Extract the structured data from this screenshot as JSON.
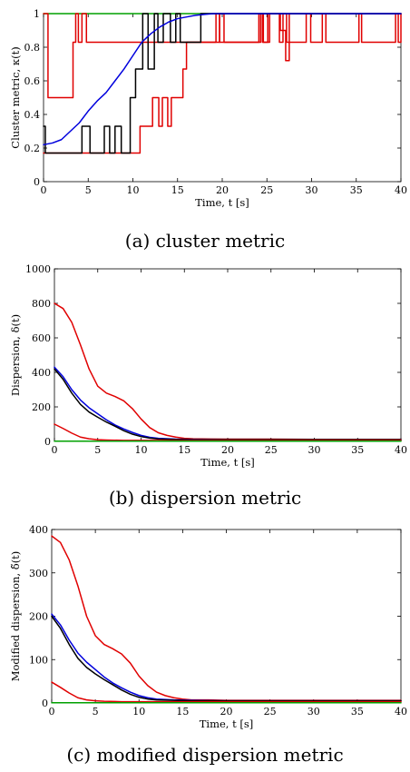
{
  "chart_data": [
    {
      "type": "line",
      "caption": "(a) cluster metric",
      "xlabel": "Time, t [s]",
      "ylabel": "Cluster metric, κ(t)",
      "xlim": [
        0,
        40
      ],
      "ylim": [
        0,
        1
      ],
      "xticks": [
        0,
        5,
        10,
        15,
        20,
        25,
        30,
        35,
        40
      ],
      "yticks": [
        0,
        0.2,
        0.4,
        0.6,
        0.8,
        1
      ],
      "ytick_labels": [
        "0",
        "0.2",
        "0.4",
        "0.6",
        "0.8",
        "1"
      ],
      "series": [
        {
          "color": "#00a000",
          "x": [
            0,
            40
          ],
          "y": [
            1,
            1
          ],
          "step": false
        },
        {
          "color": "#e00000",
          "x": [
            0,
            0.5,
            3.3,
            3.6,
            3.9,
            4.3,
            4.8,
            19.7,
            20.2,
            24.3,
            24.6,
            25.1,
            26.4,
            26.8,
            27.2,
            29.4,
            29.9,
            31.2,
            31.6,
            35.3,
            35.6,
            39.4,
            39.7,
            40
          ],
          "y": [
            1,
            0.5,
            0.83,
            1,
            0.83,
            1,
            0.83,
            1,
            0.83,
            1,
            0.83,
            1,
            0.83,
            1,
            0.83,
            1,
            0.83,
            1,
            0.83,
            1,
            0.83,
            1,
            0.83,
            1
          ],
          "step": true
        },
        {
          "color": "#e00000",
          "x": [
            0,
            0.3,
            10.8,
            12.2,
            12.9,
            13.3,
            13.9,
            14.3,
            14.7,
            15.6,
            16.0,
            17.4,
            19.3,
            19.7,
            24.1,
            24.5,
            25.3,
            26.5,
            27.1,
            27.5,
            40
          ],
          "y": [
            0.17,
            0.17,
            0.33,
            0.5,
            0.33,
            0.5,
            0.33,
            0.5,
            0.5,
            0.67,
            0.83,
            0.83,
            1,
            0.83,
            1,
            0.83,
            1,
            0.9,
            0.72,
            1,
            1
          ],
          "step": true
        },
        {
          "color": "#000000",
          "x": [
            0,
            0.2,
            4.3,
            5.2,
            6.8,
            7.4,
            8.0,
            8.7,
            9.7,
            10.3,
            11.1,
            11.7,
            12.4,
            12.8,
            13.4,
            14.2,
            14.8,
            15.3,
            15.8,
            17.6,
            40
          ],
          "y": [
            0.33,
            0.17,
            0.33,
            0.17,
            0.33,
            0.17,
            0.33,
            0.17,
            0.5,
            0.67,
            1,
            0.67,
            1,
            0.83,
            1,
            0.83,
            1,
            0.83,
            0.83,
            1,
            1
          ],
          "step": true
        },
        {
          "color": "#0000dd",
          "x": [
            0,
            1,
            2,
            3,
            4,
            5,
            6,
            7,
            8,
            9,
            10,
            11,
            12,
            13,
            14,
            15,
            16,
            17,
            18,
            19,
            20,
            22,
            25,
            30,
            35,
            40
          ],
          "y": [
            0.22,
            0.23,
            0.25,
            0.3,
            0.35,
            0.42,
            0.48,
            0.53,
            0.6,
            0.67,
            0.75,
            0.83,
            0.88,
            0.92,
            0.95,
            0.97,
            0.98,
            0.99,
            0.995,
            1,
            1,
            1,
            1,
            1,
            1,
            1
          ],
          "step": false
        }
      ]
    },
    {
      "type": "line",
      "caption": "(b) dispersion metric",
      "xlabel": "Time, t [s]",
      "ylabel": "Dispersion, δ(t)",
      "xlim": [
        0,
        40
      ],
      "ylim": [
        0,
        1000
      ],
      "xticks": [
        0,
        5,
        10,
        15,
        20,
        25,
        30,
        35,
        40
      ],
      "yticks": [
        0,
        200,
        400,
        600,
        800,
        1000
      ],
      "ytick_labels": [
        "0",
        "200",
        "400",
        "600",
        "800",
        "1000"
      ],
      "series": [
        {
          "color": "#e00000",
          "x": [
            0,
            1,
            2,
            3,
            4,
            5,
            6,
            7,
            8,
            9,
            10,
            11,
            12,
            13,
            14,
            15,
            16,
            18,
            20,
            25,
            30,
            40
          ],
          "y": [
            800,
            770,
            690,
            560,
            420,
            320,
            280,
            260,
            235,
            190,
            130,
            80,
            50,
            35,
            25,
            18,
            15,
            14,
            13,
            13,
            12,
            12
          ],
          "step": false
        },
        {
          "color": "#0000dd",
          "x": [
            0,
            1,
            2,
            3,
            4,
            5,
            6,
            7,
            8,
            9,
            10,
            11,
            12,
            14,
            16,
            20,
            30,
            40
          ],
          "y": [
            430,
            375,
            300,
            240,
            195,
            160,
            125,
            95,
            72,
            52,
            35,
            24,
            18,
            13,
            11,
            10,
            10,
            10
          ],
          "step": false
        },
        {
          "color": "#000000",
          "x": [
            0,
            1,
            2,
            3,
            4,
            5,
            6,
            7,
            8,
            9,
            10,
            11,
            12,
            14,
            16,
            20,
            30,
            40
          ],
          "y": [
            420,
            360,
            280,
            215,
            170,
            140,
            112,
            88,
            62,
            42,
            28,
            19,
            14,
            11,
            10,
            10,
            10,
            10
          ],
          "step": false
        },
        {
          "color": "#e00000",
          "x": [
            0,
            1,
            2,
            3,
            4,
            5,
            6,
            8,
            10,
            14,
            20,
            40
          ],
          "y": [
            100,
            75,
            48,
            25,
            15,
            10,
            8,
            6,
            6,
            5,
            5,
            5
          ],
          "step": false
        },
        {
          "color": "#00a000",
          "x": [
            0,
            40
          ],
          "y": [
            1,
            1
          ],
          "step": false
        }
      ]
    },
    {
      "type": "line",
      "caption": "(c) modified dispersion metric",
      "xlabel": "Time, t [s]",
      "ylabel": "Modified dispersion, δ̃(t)",
      "xlim": [
        0,
        40
      ],
      "ylim": [
        0,
        400
      ],
      "xticks": [
        0,
        5,
        10,
        15,
        20,
        25,
        30,
        35,
        40
      ],
      "yticks": [
        0,
        100,
        200,
        300,
        400
      ],
      "ytick_labels": [
        "0",
        "100",
        "200",
        "300",
        "400"
      ],
      "series": [
        {
          "color": "#e00000",
          "x": [
            0,
            1,
            2,
            3,
            4,
            5,
            6,
            7,
            8,
            9,
            10,
            11,
            12,
            13,
            14,
            15,
            16,
            18,
            20,
            25,
            30,
            40
          ],
          "y": [
            385,
            370,
            330,
            270,
            200,
            155,
            135,
            125,
            113,
            92,
            62,
            40,
            25,
            17,
            12,
            9,
            7,
            7,
            6,
            6,
            6,
            6
          ],
          "step": false
        },
        {
          "color": "#0000dd",
          "x": [
            0,
            1,
            2,
            3,
            4,
            5,
            6,
            7,
            8,
            9,
            10,
            11,
            12,
            14,
            16,
            20,
            30,
            40
          ],
          "y": [
            205,
            180,
            145,
            115,
            94,
            77,
            60,
            46,
            35,
            25,
            17,
            12,
            9,
            7,
            6,
            5,
            5,
            5
          ],
          "step": false
        },
        {
          "color": "#000000",
          "x": [
            0,
            1,
            2,
            3,
            4,
            5,
            6,
            7,
            8,
            9,
            10,
            11,
            12,
            14,
            16,
            20,
            30,
            40
          ],
          "y": [
            200,
            172,
            135,
            103,
            82,
            67,
            54,
            42,
            30,
            20,
            13,
            9,
            7,
            6,
            5,
            5,
            5,
            5
          ],
          "step": false
        },
        {
          "color": "#e00000",
          "x": [
            0,
            1,
            2,
            3,
            4,
            5,
            6,
            8,
            10,
            14,
            20,
            40
          ],
          "y": [
            48,
            36,
            23,
            12,
            7,
            5,
            4,
            3,
            3,
            3,
            3,
            3
          ],
          "step": false
        },
        {
          "color": "#00a000",
          "x": [
            0,
            40
          ],
          "y": [
            0.5,
            0.5
          ],
          "step": false
        }
      ]
    }
  ]
}
